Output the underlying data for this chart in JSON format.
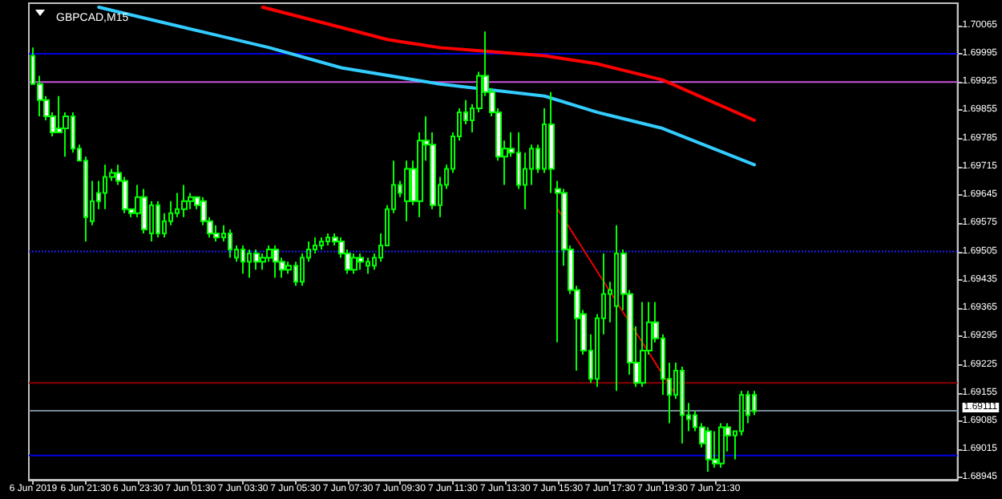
{
  "chart_data": {
    "type": "candlestick",
    "title": "GBPCAD,M15",
    "color": "#00ff00",
    "x": [
      "2019-06-06T19:30",
      "2019-06-06T19:45",
      "2019-06-06T20:00",
      "2019-06-06T20:15",
      "2019-06-06T20:30",
      "2019-06-06T20:45",
      "2019-06-06T21:00",
      "2019-06-06T21:15",
      "2019-06-06T21:30",
      "2019-06-06T21:45",
      "2019-06-06T22:00",
      "2019-06-06T22:15",
      "2019-06-06T22:30",
      "2019-06-06T22:45",
      "2019-06-06T23:00",
      "2019-06-06T23:15",
      "2019-06-06T23:30",
      "2019-06-06T23:45",
      "2019-06-07T00:00",
      "2019-06-07T00:15",
      "2019-06-07T00:30",
      "2019-06-07T00:45",
      "2019-06-07T01:00",
      "2019-06-07T01:15",
      "2019-06-07T01:30",
      "2019-06-07T01:45",
      "2019-06-07T02:00",
      "2019-06-07T02:15",
      "2019-06-07T02:30",
      "2019-06-07T02:45",
      "2019-06-07T03:00",
      "2019-06-07T03:15",
      "2019-06-07T03:30",
      "2019-06-07T03:45",
      "2019-06-07T04:00",
      "2019-06-07T04:15",
      "2019-06-07T04:30",
      "2019-06-07T04:45",
      "2019-06-07T05:00",
      "2019-06-07T05:15",
      "2019-06-07T05:30",
      "2019-06-07T05:45",
      "2019-06-07T06:00",
      "2019-06-07T06:15",
      "2019-06-07T06:30",
      "2019-06-07T06:45",
      "2019-06-07T07:00",
      "2019-06-07T07:15",
      "2019-06-07T07:30",
      "2019-06-07T07:45",
      "2019-06-07T08:00",
      "2019-06-07T08:15",
      "2019-06-07T08:30",
      "2019-06-07T08:45",
      "2019-06-07T09:00",
      "2019-06-07T09:15",
      "2019-06-07T09:30",
      "2019-06-07T09:45",
      "2019-06-07T10:00",
      "2019-06-07T10:15",
      "2019-06-07T10:30",
      "2019-06-07T10:45",
      "2019-06-07T11:00",
      "2019-06-07T11:15",
      "2019-06-07T11:30",
      "2019-06-07T11:45",
      "2019-06-07T12:00",
      "2019-06-07T12:15",
      "2019-06-07T12:30",
      "2019-06-07T12:45",
      "2019-06-07T13:00",
      "2019-06-07T13:15",
      "2019-06-07T13:30",
      "2019-06-07T13:45",
      "2019-06-07T14:00",
      "2019-06-07T14:15",
      "2019-06-07T14:30",
      "2019-06-07T14:45",
      "2019-06-07T15:00",
      "2019-06-07T15:15",
      "2019-06-07T15:30",
      "2019-06-07T15:45",
      "2019-06-07T16:00",
      "2019-06-07T16:15",
      "2019-06-07T16:30",
      "2019-06-07T16:45",
      "2019-06-07T17:00",
      "2019-06-07T17:15",
      "2019-06-07T17:30",
      "2019-06-07T17:45",
      "2019-06-07T18:00",
      "2019-06-07T18:15",
      "2019-06-07T18:30",
      "2019-06-07T18:45",
      "2019-06-07T19:00",
      "2019-06-07T19:15",
      "2019-06-07T19:30",
      "2019-06-07T19:45",
      "2019-06-07T20:00",
      "2019-06-07T20:15",
      "2019-06-07T20:30",
      "2019-06-07T20:45",
      "2019-06-07T21:00",
      "2019-06-07T21:15",
      "2019-06-07T21:30",
      "2019-06-07T21:45",
      "2019-06-07T22:00",
      "2019-06-07T22:15",
      "2019-06-07T22:30",
      "2019-06-07T22:45",
      "2019-06-07T23:00"
    ],
    "ohlc": [
      [
        1.6999,
        1.7001,
        1.6992,
        1.6992
      ],
      [
        1.6992,
        1.6994,
        1.6984,
        1.6988
      ],
      [
        1.6988,
        1.6989,
        1.6983,
        1.6984
      ],
      [
        1.6984,
        1.6985,
        1.6979,
        1.698
      ],
      [
        1.6981,
        1.6989,
        1.698,
        1.698
      ],
      [
        1.6981,
        1.6985,
        1.6974,
        1.6984
      ],
      [
        1.6984,
        1.6985,
        1.6975,
        1.6976
      ],
      [
        1.6976,
        1.6977,
        1.6973,
        1.6973
      ],
      [
        1.6973,
        1.6974,
        1.6953,
        1.6959
      ],
      [
        1.6958,
        1.6968,
        1.6957,
        1.6963
      ],
      [
        1.6965,
        1.6968,
        1.6961,
        1.6963
      ],
      [
        1.6965,
        1.6972,
        1.6961,
        1.6969
      ],
      [
        1.6969,
        1.6971,
        1.6968,
        1.697
      ],
      [
        1.697,
        1.6972,
        1.6967,
        1.6968
      ],
      [
        1.6968,
        1.6969,
        1.696,
        1.6961
      ],
      [
        1.6961,
        1.6961,
        1.6959,
        1.696
      ],
      [
        1.696,
        1.6967,
        1.6959,
        1.6964
      ],
      [
        1.6964,
        1.6966,
        1.6955,
        1.6956
      ],
      [
        1.6955,
        1.6963,
        1.6953,
        1.6962
      ],
      [
        1.6962,
        1.6963,
        1.6954,
        1.6955
      ],
      [
        1.6955,
        1.696,
        1.6954,
        1.6958
      ],
      [
        1.6958,
        1.6963,
        1.6957,
        1.696
      ],
      [
        1.696,
        1.6965,
        1.6959,
        1.6961
      ],
      [
        1.6961,
        1.6967,
        1.6959,
        1.6963
      ],
      [
        1.6963,
        1.6965,
        1.6961,
        1.6964
      ],
      [
        1.6964,
        1.6964,
        1.6961,
        1.6962
      ],
      [
        1.6963,
        1.6964,
        1.6957,
        1.6958
      ],
      [
        1.6958,
        1.6959,
        1.6954,
        1.6955
      ],
      [
        1.6955,
        1.6957,
        1.6953,
        1.6954
      ],
      [
        1.6954,
        1.6957,
        1.6953,
        1.6955
      ],
      [
        1.6955,
        1.6956,
        1.6949,
        1.6951
      ],
      [
        1.6949,
        1.6952,
        1.6948,
        1.6951
      ],
      [
        1.6951,
        1.6952,
        1.6945,
        1.6948
      ],
      [
        1.6948,
        1.6951,
        1.6944,
        1.695
      ],
      [
        1.695,
        1.6951,
        1.6946,
        1.6948
      ],
      [
        1.6948,
        1.695,
        1.6946,
        1.6949
      ],
      [
        1.6949,
        1.6952,
        1.6948,
        1.6951
      ],
      [
        1.6951,
        1.6952,
        1.6944,
        1.6948
      ],
      [
        1.6948,
        1.6949,
        1.6944,
        1.6946
      ],
      [
        1.6946,
        1.6948,
        1.6945,
        1.6947
      ],
      [
        1.6947,
        1.6948,
        1.6942,
        1.6943
      ],
      [
        1.6943,
        1.695,
        1.6942,
        1.6949
      ],
      [
        1.6949,
        1.6953,
        1.6948,
        1.6951
      ],
      [
        1.6951,
        1.6954,
        1.695,
        1.6952
      ],
      [
        1.6952,
        1.6954,
        1.6951,
        1.6953
      ],
      [
        1.6953,
        1.6955,
        1.6952,
        1.6954
      ],
      [
        1.6954,
        1.6955,
        1.6952,
        1.6953
      ],
      [
        1.6953,
        1.6954,
        1.6949,
        1.695
      ],
      [
        1.695,
        1.6951,
        1.6945,
        1.6946
      ],
      [
        1.6946,
        1.695,
        1.6945,
        1.6949
      ],
      [
        1.6949,
        1.695,
        1.6946,
        1.6948
      ],
      [
        1.6947,
        1.6949,
        1.6945,
        1.6948
      ],
      [
        1.6947,
        1.695,
        1.6946,
        1.6949
      ],
      [
        1.6949,
        1.6955,
        1.6948,
        1.6952
      ],
      [
        1.6952,
        1.6962,
        1.6952,
        1.6961
      ],
      [
        1.6961,
        1.6973,
        1.696,
        1.6967
      ],
      [
        1.6967,
        1.6968,
        1.6964,
        1.6965
      ],
      [
        1.6963,
        1.6973,
        1.6958,
        1.6971
      ],
      [
        1.6971,
        1.6973,
        1.6962,
        1.6963
      ],
      [
        1.6963,
        1.698,
        1.6959,
        1.6978
      ],
      [
        1.6978,
        1.6984,
        1.6973,
        1.6977
      ],
      [
        1.6977,
        1.698,
        1.6961,
        1.6962
      ],
      [
        1.6962,
        1.6969,
        1.6959,
        1.6967
      ],
      [
        1.6967,
        1.6972,
        1.6966,
        1.6971
      ],
      [
        1.6971,
        1.698,
        1.697,
        1.6979
      ],
      [
        1.6979,
        1.6986,
        1.6978,
        1.6985
      ],
      [
        1.6985,
        1.6988,
        1.6982,
        1.6983
      ],
      [
        1.6983,
        1.6987,
        1.698,
        1.6986
      ],
      [
        1.6986,
        1.6995,
        1.6985,
        1.6994
      ],
      [
        1.6994,
        1.7005,
        1.6989,
        1.699
      ],
      [
        1.699,
        1.6991,
        1.6984,
        1.6985
      ],
      [
        1.6985,
        1.6986,
        1.6973,
        1.6974
      ],
      [
        1.6974,
        1.6978,
        1.6967,
        1.6976
      ],
      [
        1.6976,
        1.698,
        1.6974,
        1.6975
      ],
      [
        1.6975,
        1.698,
        1.6966,
        1.6967
      ],
      [
        1.6967,
        1.6975,
        1.6961,
        1.6971
      ],
      [
        1.6971,
        1.6977,
        1.6967,
        1.6976
      ],
      [
        1.6976,
        1.6977,
        1.697,
        1.6971
      ],
      [
        1.6971,
        1.6986,
        1.697,
        1.6982
      ],
      [
        1.6982,
        1.699,
        1.6965,
        1.6971
      ],
      [
        1.6966,
        1.6968,
        1.6928,
        1.6965
      ],
      [
        1.6965,
        1.6966,
        1.6947,
        1.6951
      ],
      [
        1.6951,
        1.6952,
        1.694,
        1.6941
      ],
      [
        1.6941,
        1.6942,
        1.6921,
        1.6934
      ],
      [
        1.6935,
        1.6936,
        1.6925,
        1.6926
      ],
      [
        1.6926,
        1.693,
        1.6918,
        1.6919
      ],
      [
        1.6919,
        1.6935,
        1.6917,
        1.6934
      ],
      [
        1.6934,
        1.695,
        1.693,
        1.694
      ],
      [
        1.694,
        1.6943,
        1.6933,
        1.6941
      ],
      [
        1.6937,
        1.6957,
        1.6916,
        1.695
      ],
      [
        1.695,
        1.6951,
        1.6936,
        1.694
      ],
      [
        1.694,
        1.6941,
        1.692,
        1.6923
      ],
      [
        1.6923,
        1.6932,
        1.6917,
        1.6918
      ],
      [
        1.6918,
        1.6938,
        1.6917,
        1.6926
      ],
      [
        1.6926,
        1.6938,
        1.6925,
        1.6933
      ],
      [
        1.6933,
        1.6938,
        1.6928,
        1.6929
      ],
      [
        1.6929,
        1.693,
        1.6915,
        1.6919
      ],
      [
        1.6919,
        1.6923,
        1.6908,
        1.6915
      ],
      [
        1.6915,
        1.6923,
        1.6914,
        1.6921
      ],
      [
        1.6921,
        1.6922,
        1.6903,
        1.691
      ],
      [
        1.691,
        1.6913,
        1.6906,
        1.6909
      ],
      [
        1.691,
        1.6911,
        1.6906,
        1.6907
      ],
      [
        1.6907,
        1.6908,
        1.6902,
        1.6903
      ],
      [
        1.6906,
        1.6907,
        1.6896,
        1.6899
      ],
      [
        1.6899,
        1.6906,
        1.6897,
        1.6898
      ],
      [
        1.6898,
        1.6908,
        1.6897,
        1.6907
      ],
      [
        1.6907,
        1.6908,
        1.6901,
        1.6905
      ],
      [
        1.6905,
        1.6906,
        1.6899,
        1.6906
      ],
      [
        1.6906,
        1.6916,
        1.6905,
        1.6915
      ],
      [
        1.6915,
        1.6916,
        1.6908,
        1.691
      ],
      [
        1.6915,
        1.6916,
        1.691,
        1.6911
      ]
    ],
    "series": [
      {
        "type": "line",
        "color": "#33ccff",
        "x": [
          "2019-06-06T22:00",
          "2019-06-07T01:15",
          "2019-06-07T04:30",
          "2019-06-07T07:15",
          "2019-06-07T11:00",
          "2019-06-07T15:00",
          "2019-06-07T17:00",
          "2019-06-07T19:30",
          "2019-06-07T23:00"
        ],
        "values": [
          1.7011,
          1.7006,
          1.7001,
          1.6996,
          1.6992,
          1.6989,
          1.6985,
          1.6981,
          1.6972
        ]
      },
      {
        "type": "line",
        "color": "#ff0000",
        "x": [
          "2019-06-07T04:15",
          "2019-06-07T07:15",
          "2019-06-07T09:00",
          "2019-06-07T11:00",
          "2019-06-07T13:00",
          "2019-06-07T15:00",
          "2019-06-07T17:00",
          "2019-06-07T19:30",
          "2019-06-07T23:00"
        ],
        "values": [
          1.7011,
          1.7006,
          1.7003,
          1.7001,
          1.7,
          1.6999,
          1.6997,
          1.6993,
          1.6983
        ]
      },
      {
        "type": "line",
        "color": "#ff0000",
        "line_style": "dotted",
        "x": [
          "2019-06-07T15:30",
          "2019-06-07T20:00"
        ],
        "values": [
          1.6961,
          1.6915
        ]
      }
    ],
    "ref_lines": [
      {
        "axis": "y",
        "value": 1.69995,
        "color": "#0000e0"
      },
      {
        "axis": "y",
        "value": 1.69925,
        "color": "#cc55dd"
      },
      {
        "axis": "y",
        "value": 1.69505,
        "color": "#2020ff",
        "line_style": "dotted"
      },
      {
        "axis": "y",
        "value": 1.6918,
        "color": "#8b0000"
      },
      {
        "axis": "y",
        "value": 1.69111,
        "color": "#778899",
        "label": "1.69111"
      },
      {
        "axis": "y",
        "value": 1.69,
        "color": "#0000e0"
      }
    ],
    "marker": "none",
    "xlim": [
      "2019-06-06T19:20",
      "2019-06-08T06:45"
    ],
    "xticks": [
      {
        "value": "2019-06-06T19:30",
        "label": "6 Jun 2019"
      },
      {
        "value": "2019-06-06T21:30",
        "label": "6 Jun 21:30"
      },
      {
        "value": "2019-06-06T23:30",
        "label": "6 Jun 23:30"
      },
      {
        "value": "2019-06-07T01:30",
        "label": "7 Jun 01:30"
      },
      {
        "value": "2019-06-07T03:30",
        "label": "7 Jun 03:30"
      },
      {
        "value": "2019-06-07T05:30",
        "label": "7 Jun 05:30"
      },
      {
        "value": "2019-06-07T07:30",
        "label": "7 Jun 07:30"
      },
      {
        "value": "2019-06-07T09:30",
        "label": "7 Jun 09:30"
      },
      {
        "value": "2019-06-07T11:30",
        "label": "7 Jun 11:30"
      },
      {
        "value": "2019-06-07T13:30",
        "label": "7 Jun 13:30"
      },
      {
        "value": "2019-06-07T15:30",
        "label": "7 Jun 15:30"
      },
      {
        "value": "2019-06-07T17:30",
        "label": "7 Jun 17:30"
      },
      {
        "value": "2019-06-07T19:30",
        "label": "7 Jun 19:30"
      },
      {
        "value": "2019-06-07T21:30",
        "label": "7 Jun 21:30"
      }
    ],
    "ylim": [
      1.6894,
      1.7012
    ],
    "yticks": [
      1.68945,
      1.69015,
      1.69085,
      1.69155,
      1.69225,
      1.69295,
      1.69365,
      1.69435,
      1.69505,
      1.69575,
      1.69645,
      1.69715,
      1.69785,
      1.69855,
      1.69925,
      1.69995,
      1.70065
    ]
  }
}
